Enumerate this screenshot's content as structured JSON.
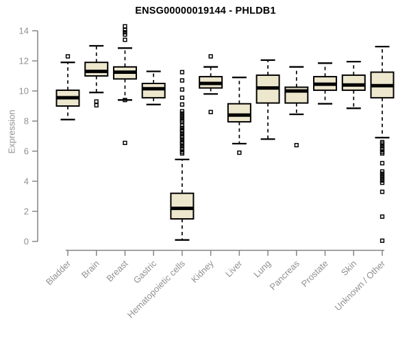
{
  "chart_data": {
    "type": "boxplot",
    "title": "ENSG00000019144 - PHLDB1",
    "xlabel": "",
    "ylabel": "Expression",
    "ylim": [
      0,
      14
    ],
    "yticks": [
      0,
      2,
      4,
      6,
      8,
      10,
      12,
      14
    ],
    "grid": false,
    "legend": "none",
    "categories": [
      "Bladder",
      "Brain",
      "Breast",
      "Gastric",
      "Hematopoietic cells",
      "Kidney",
      "Liver",
      "Lung",
      "Pancreas",
      "Prostate",
      "Skin",
      "Unknown / Other"
    ],
    "series": [
      {
        "name": "Bladder",
        "whisker_low": 8.1,
        "q1": 9.0,
        "median": 9.55,
        "q3": 10.05,
        "whisker_high": 11.9,
        "outliers": [
          12.3
        ]
      },
      {
        "name": "Brain",
        "whisker_low": 9.9,
        "q1": 11.0,
        "median": 11.3,
        "q3": 11.9,
        "whisker_high": 13.0,
        "outliers": [
          9.3,
          9.05
        ]
      },
      {
        "name": "Breast",
        "whisker_low": 9.4,
        "q1": 10.8,
        "median": 11.25,
        "q3": 11.6,
        "whisker_high": 12.85,
        "outliers": [
          14.3,
          14.05,
          13.9,
          13.75,
          13.4,
          9.4,
          6.55
        ]
      },
      {
        "name": "Gastric",
        "whisker_low": 9.1,
        "q1": 9.55,
        "median": 10.15,
        "q3": 10.5,
        "whisker_high": 11.3,
        "outliers": []
      },
      {
        "name": "Hematopoietic cells",
        "whisker_low": 0.1,
        "q1": 1.5,
        "median": 2.2,
        "q3": 3.2,
        "whisker_high": 5.45,
        "outliers": [
          11.25,
          10.7,
          10.1,
          9.55,
          9.1,
          8.65,
          8.5,
          8.35,
          8.2,
          8.05,
          7.95,
          7.7,
          7.55,
          7.4,
          7.3,
          7.15,
          7.0,
          6.9,
          6.75,
          6.6,
          6.5,
          6.35,
          6.2,
          6.1,
          5.95,
          5.85
        ]
      },
      {
        "name": "Kidney",
        "whisker_low": 9.8,
        "q1": 10.2,
        "median": 10.5,
        "q3": 10.95,
        "whisker_high": 11.6,
        "outliers": [
          12.3,
          8.6
        ]
      },
      {
        "name": "Liver",
        "whisker_low": 6.5,
        "q1": 7.95,
        "median": 8.4,
        "q3": 9.15,
        "whisker_high": 10.9,
        "outliers": [
          5.9
        ]
      },
      {
        "name": "Lung",
        "whisker_low": 6.8,
        "q1": 9.2,
        "median": 10.2,
        "q3": 11.05,
        "whisker_high": 12.05,
        "outliers": []
      },
      {
        "name": "Pancreas",
        "whisker_low": 8.45,
        "q1": 9.2,
        "median": 10.0,
        "q3": 10.25,
        "whisker_high": 11.6,
        "outliers": [
          6.4
        ]
      },
      {
        "name": "Prostate",
        "whisker_low": 9.15,
        "q1": 10.05,
        "median": 10.45,
        "q3": 10.95,
        "whisker_high": 11.85,
        "outliers": []
      },
      {
        "name": "Skin",
        "whisker_low": 8.85,
        "q1": 10.05,
        "median": 10.4,
        "q3": 11.05,
        "whisker_high": 11.95,
        "outliers": []
      },
      {
        "name": "Unknown / Other",
        "whisker_low": 6.9,
        "q1": 9.55,
        "median": 10.35,
        "q3": 11.25,
        "whisker_high": 12.95,
        "outliers": [
          6.6,
          6.5,
          6.35,
          6.2,
          6.1,
          5.95,
          5.85,
          5.2,
          4.65,
          4.5,
          4.35,
          4.2,
          4.05,
          3.9,
          3.3,
          1.65,
          0.05
        ]
      }
    ],
    "colors": {
      "box_fill": "#EDE7CE",
      "box_stroke": "#000000",
      "median": "#000000",
      "whisker": "#000000",
      "axis": "#848484",
      "tick_label": "#909090",
      "title": "#000000",
      "background": "#ffffff"
    }
  }
}
